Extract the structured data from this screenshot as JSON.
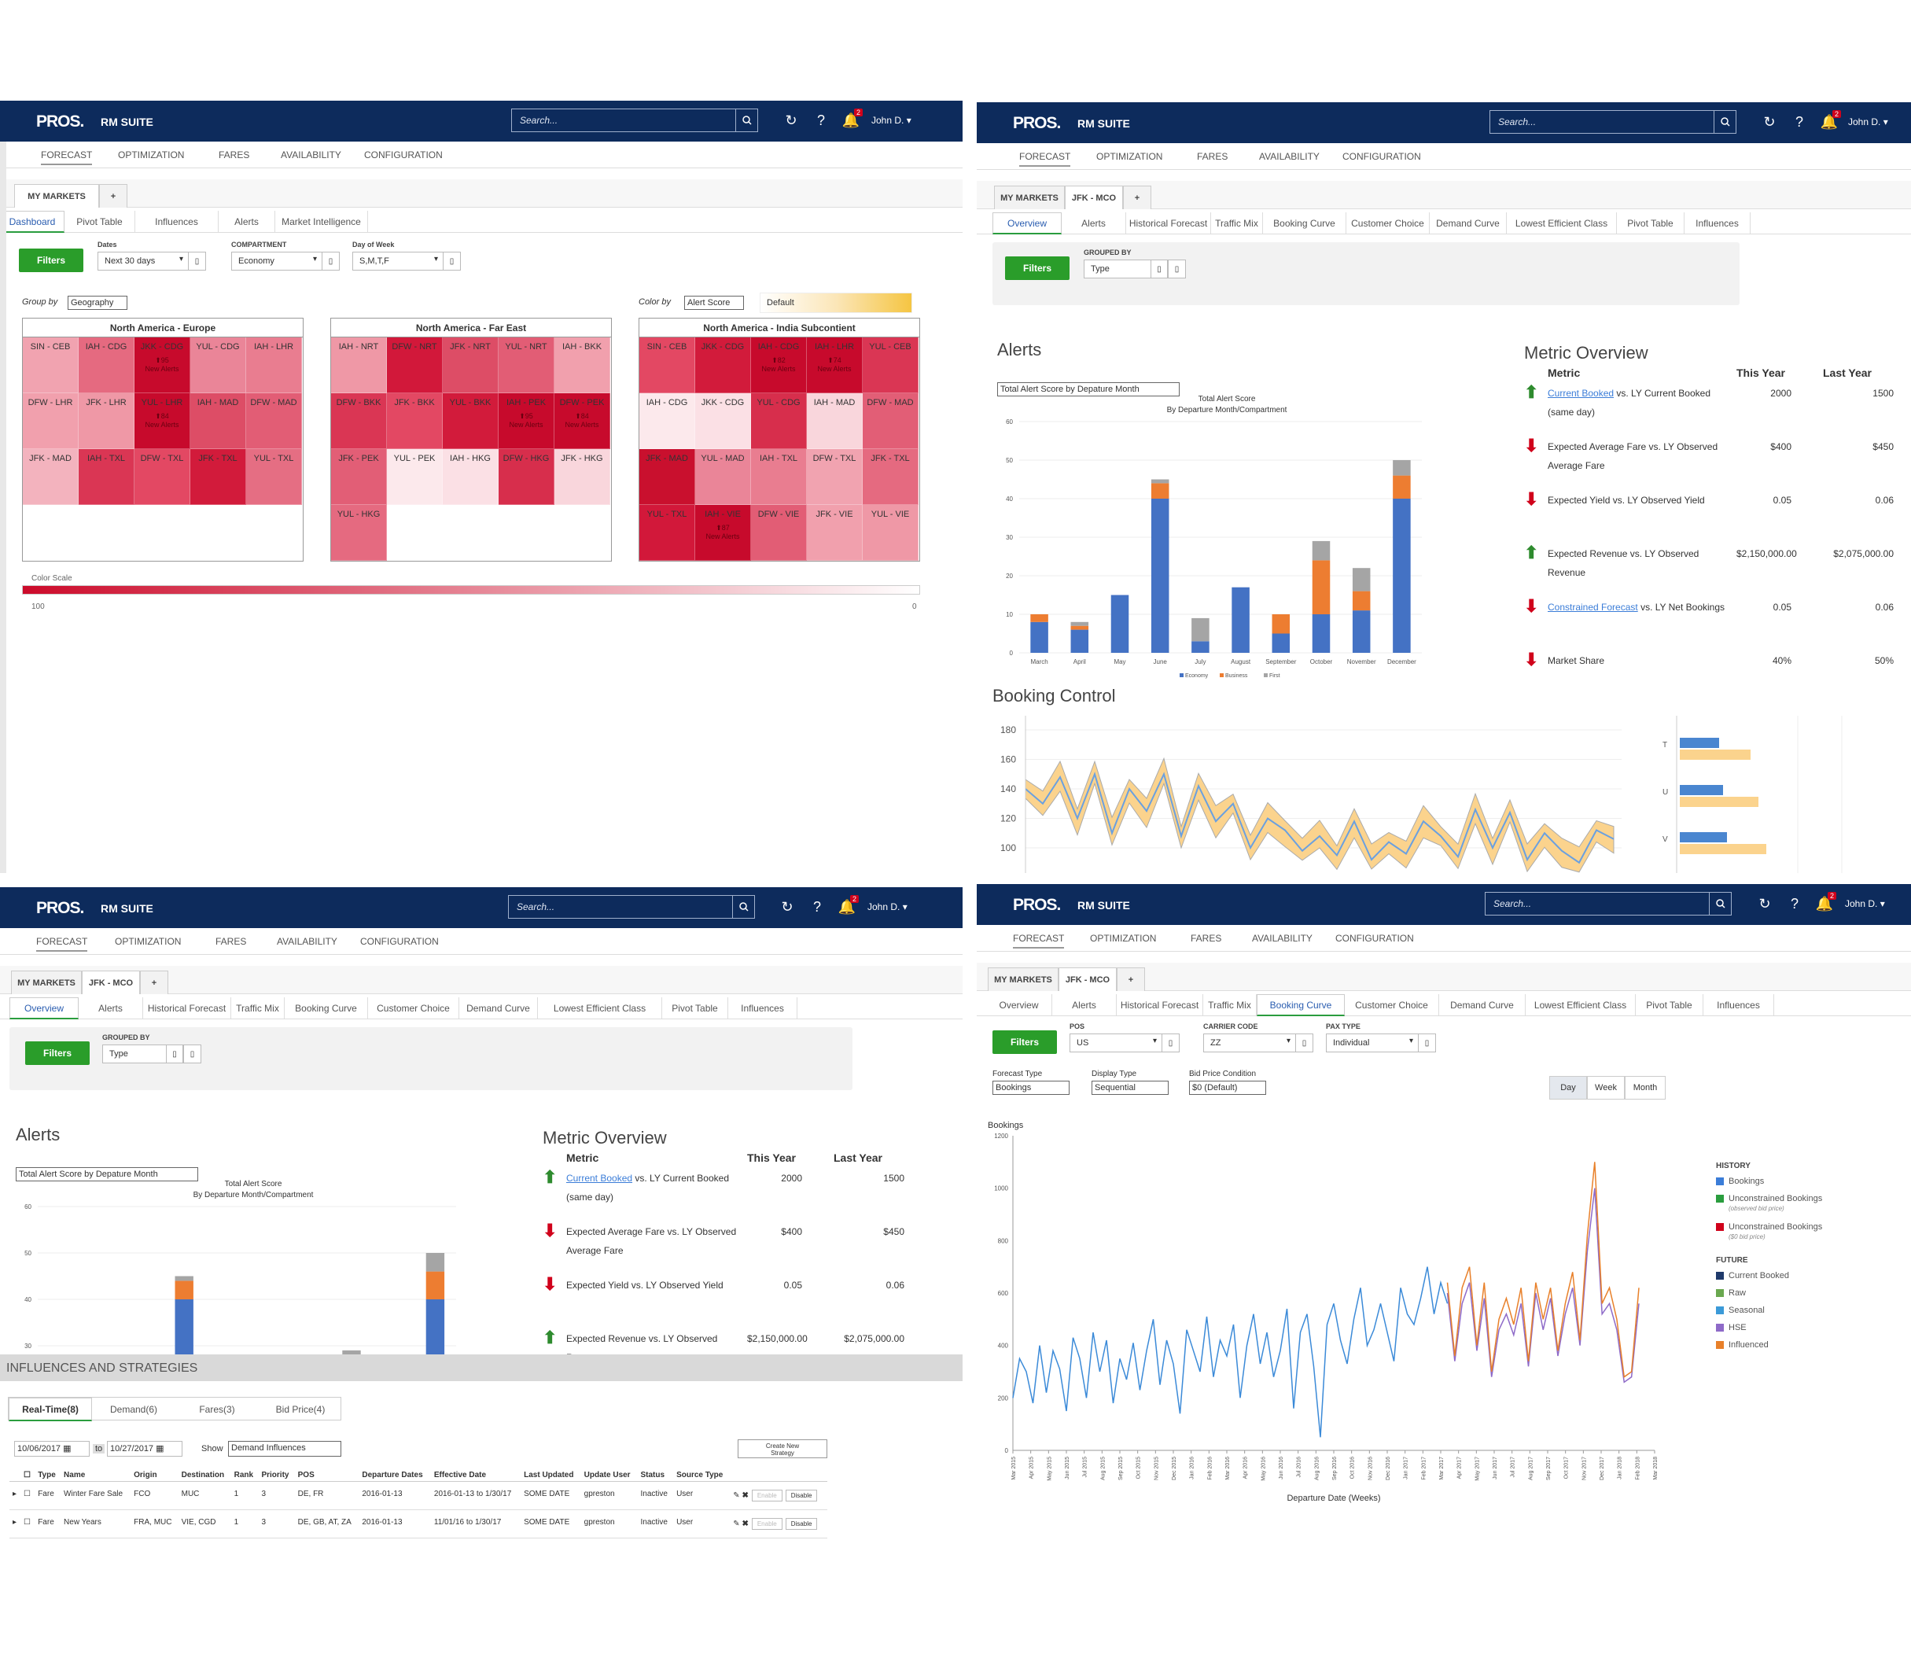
{
  "app": {
    "logo": "PROS.",
    "suite": "RM SUITE",
    "search_placeholder": "Search...",
    "user": "John D.",
    "notif": "2"
  },
  "nav": [
    "FORECAST",
    "OPTIMIZATION",
    "FARES",
    "AVAILABILITY",
    "CONFIGURATION"
  ],
  "dash": {
    "tabs": [
      "MY MARKETS",
      "+"
    ],
    "subtabs": [
      "Dashboard",
      "Pivot Table",
      "Influences",
      "Alerts",
      "Market Intelligence"
    ],
    "filters": "Filters",
    "f_dates_label": "Dates",
    "f_dates": "Next 30 days",
    "f_comp_label": "COMPARTMENT",
    "f_comp": "Economy",
    "f_dow_label": "Day of Week",
    "f_dow": "S,M,T,F",
    "group_by": "Group by",
    "group_sel": "Geography",
    "color_by": "Color by",
    "color_sel": "Alert Score",
    "default": "Default",
    "maps": [
      {
        "title": "North America - Europe",
        "cells": [
          [
            "SIN - CEB",
            "IAH - CDG",
            "JKK - CDG",
            "YUL - CDG",
            "IAH - LHR"
          ],
          [
            "DFW - LHR",
            "JFK - LHR",
            "YUL - LHR",
            "IAH - MAD",
            "DFW - MAD"
          ],
          [
            "JFK - MAD",
            "IAH - TXL",
            "DFW - TXL",
            "JFK - TXL",
            "YUL - TXL"
          ]
        ],
        "alerts": [
          {
            "r": 0,
            "c": 2,
            "n": "95",
            "t": "New Alerts"
          },
          {
            "r": 1,
            "c": 2,
            "n": "84",
            "t": "New Alerts"
          }
        ]
      },
      {
        "title": "North America - Far East",
        "cells": [
          [
            "IAH - NRT",
            "DFW - NRT",
            "JFK - NRT",
            "YUL - NRT",
            "IAH - BKK"
          ],
          [
            "DFW - BKK",
            "JFK - BKK",
            "YUL - BKK",
            "IAH - PEK",
            "DFW - PEK"
          ],
          [
            "JFK - PEK",
            "YUL - PEK",
            "IAH - HKG",
            "DFW - HKG",
            "JFK - HKG"
          ],
          [
            "YUL - HKG"
          ]
        ],
        "alerts": [
          {
            "r": 1,
            "c": 3,
            "n": "95",
            "t": "New Alerts"
          },
          {
            "r": 1,
            "c": 4,
            "n": "84",
            "t": "New Alerts"
          }
        ]
      },
      {
        "title": "North America - India Subcontient",
        "cells": [
          [
            "SIN - CEB",
            "JKK - CDG",
            "IAH - CDG",
            "IAH - LHR",
            "YUL - CEB"
          ],
          [
            "IAH - CDG",
            "JKK - CDG",
            "YUL - CDG",
            "IAH - MAD",
            "DFW - MAD"
          ],
          [
            "JFK - MAD",
            "YUL - MAD",
            "IAH - TXL",
            "DFW - TXL",
            "JFK - TXL"
          ],
          [
            "YUL - TXL",
            "IAH - VIE",
            "DFW - VIE",
            "JFK - VIE",
            "YUL - VIE"
          ]
        ],
        "alerts": [
          {
            "r": 0,
            "c": 2,
            "n": "82",
            "t": "New Alerts"
          },
          {
            "r": 0,
            "c": 3,
            "n": "74",
            "t": "New Alerts"
          },
          {
            "r": 3,
            "c": 1,
            "n": "87",
            "t": "New Alerts"
          }
        ]
      }
    ],
    "color_scale": "Color Scale",
    "scale_max": "100",
    "scale_min": "0"
  },
  "overview": {
    "tabs": [
      "MY MARKETS",
      "JFK - MCO",
      "+"
    ],
    "subtabs": [
      "Overview",
      "Alerts",
      "Historical Forecast",
      "Traffic Mix",
      "Booking Curve",
      "Customer Choice",
      "Demand Curve",
      "Lowest Efficient Class",
      "Pivot Table",
      "Influences"
    ],
    "grouped_by": "GROUPED BY",
    "grouped_sel": "Type",
    "alerts_title": "Alerts",
    "alerts_sel": "Total Alert Score by Depature Month",
    "chart_title1": "Total Alert Score",
    "chart_title2": "By Departure Month/Compartment",
    "metric_title": "Metric Overview",
    "col_metric": "Metric",
    "col_ty": "This Year",
    "col_ly": "Last Year",
    "metrics": [
      {
        "dir": "up",
        "link": "Current Booked",
        "text": " vs. LY Current Booked (same day)",
        "ty": "2000",
        "ly": "1500"
      },
      {
        "dir": "dn",
        "link": "",
        "text": "Expected Average Fare vs. LY Observed Average Fare",
        "ty": "$400",
        "ly": "$450"
      },
      {
        "dir": "dn",
        "link": "",
        "text": "Expected Yield vs. LY Observed Yield",
        "ty": "0.05",
        "ly": "0.06"
      },
      {
        "dir": "up",
        "link": "",
        "text": "Expected Revenue vs. LY Observed Revenue",
        "ty": "$2,150,000.00",
        "ly": "$2,075,000.00"
      },
      {
        "dir": "dn",
        "link": "Constrained Forecast",
        "text": " vs. LY Net Bookings",
        "ty": "0.05",
        "ly": "0.06"
      },
      {
        "dir": "dn",
        "link": "",
        "text": "Market Share",
        "ty": "40%",
        "ly": "50%"
      }
    ],
    "booking_control": "Booking Control",
    "bc_yticks": [
      "180",
      "160",
      "140",
      "120",
      "100"
    ],
    "bc_classes": [
      "T",
      "U",
      "V"
    ]
  },
  "chart_data": [
    {
      "type": "bar",
      "title": "Total Alert Score",
      "subtitle": "By Departure Month/Compartment",
      "categories": [
        "March",
        "April",
        "May",
        "June",
        "July",
        "August",
        "September",
        "October",
        "November",
        "December"
      ],
      "series": [
        {
          "name": "Economy",
          "values": [
            8,
            6,
            15,
            40,
            3,
            17,
            5,
            10,
            11,
            40
          ]
        },
        {
          "name": "Business",
          "values": [
            2,
            1,
            0,
            4,
            0,
            0,
            5,
            14,
            5,
            6
          ]
        },
        {
          "name": "First",
          "values": [
            0,
            1,
            0,
            1,
            6,
            0,
            0,
            5,
            6,
            4
          ]
        }
      ],
      "ylim": [
        0,
        60
      ],
      "yticks": [
        0,
        10,
        20,
        30,
        40,
        50,
        60
      ],
      "legend": "bottom"
    },
    {
      "type": "line",
      "ylabel": "Bookings",
      "xlabel": "Departure Date (Weeks)",
      "ylim": [
        0,
        1200
      ],
      "yticks": [
        0,
        200,
        400,
        600,
        800,
        1000,
        1200
      ],
      "series": [
        {
          "name": "Bookings",
          "values": [
            200,
            350,
            300,
            180,
            400,
            220,
            380,
            310,
            150,
            430,
            350,
            200,
            450,
            300,
            420,
            180,
            350,
            270,
            410,
            230,
            380,
            500,
            250,
            420,
            330,
            140,
            460,
            380,
            300,
            510,
            280,
            420,
            360,
            480,
            200,
            400,
            520,
            330,
            450,
            280,
            380,
            540,
            160,
            450,
            520,
            320,
            50,
            480,
            560,
            420,
            330,
            500,
            620,
            400,
            460,
            560,
            450,
            340,
            620,
            520,
            480,
            580,
            700,
            520,
            640,
            560
          ]
        },
        {
          "name": "Unconstrained Bookings",
          "values": [
            640,
            360,
            620,
            700,
            400,
            640,
            300,
            500,
            580,
            480,
            620,
            340,
            640,
            500,
            620,
            380,
            560,
            680,
            420,
            820,
            1100,
            560,
            620,
            500,
            280,
            300,
            620
          ]
        },
        {
          "name": "HSE",
          "values": [
            600,
            340,
            560,
            640,
            380,
            580,
            280,
            460,
            520,
            440,
            560,
            320,
            600,
            460,
            580,
            360,
            520,
            620,
            400,
            760,
            1000,
            520,
            560,
            460,
            260,
            280,
            560
          ]
        }
      ]
    }
  ],
  "infl": {
    "band": "INFLUENCES AND STRATEGIES",
    "tabs": [
      "Real-Time(8)",
      "Demand(6)",
      "Fares(3)",
      "Bid Price(4)"
    ],
    "date_from": "10/06/2017",
    "to": "to",
    "date_to": "10/27/2017",
    "show": "Show",
    "show_sel": "Demand Influences",
    "create": "Create New Strategy",
    "cols": [
      "Type",
      "Name",
      "Origin",
      "Destination",
      "Rank",
      "Priority",
      "POS",
      "Departure Dates",
      "Effective Date",
      "Last Updated",
      "Update User",
      "Status",
      "Source Type"
    ],
    "rows": [
      [
        "Fare",
        "Winter Fare Sale",
        "FCO",
        "MUC",
        "1",
        "3",
        "DE, FR",
        "2016-01-13",
        "2016-01-13 to 1/30/17",
        "SOME DATE",
        "gpreston",
        "Inactive",
        "User"
      ],
      [
        "Fare",
        "New Years",
        "FRA, MUC",
        "VIE, CGD",
        "1",
        "3",
        "DE, GB, AT, ZA",
        "2016-01-13",
        "11/01/16 to 1/30/17",
        "SOME DATE",
        "gpreston",
        "Inactive",
        "User"
      ]
    ],
    "enable": "Enable",
    "disable": "Disable"
  },
  "curve": {
    "pos_label": "POS",
    "pos": "US",
    "carrier_label": "CARRIER CODE",
    "carrier": "ZZ",
    "pax_label": "PAX TYPE",
    "pax": "Individual",
    "ftype_label": "Forecast Type",
    "ftype": "Bookings",
    "dtype_label": "Display Type",
    "dtype": "Sequential",
    "bid_label": "Bid Price Condition",
    "bid": "$0 (Default)",
    "seg": [
      "Day",
      "Week",
      "Month"
    ],
    "xticks": [
      "Mar 2015",
      "Apr 2015",
      "May 2015",
      "Jun 2015",
      "Jul 2015",
      "Aug 2015",
      "Sep 2015",
      "Oct 2015",
      "Nov 2015",
      "Dec 2015",
      "Jan 2016",
      "Feb 2016",
      "Mar 2016",
      "Apr 2016",
      "May 2016",
      "Jun 2016",
      "Jul 2016",
      "Aug 2016",
      "Sep 2016",
      "Oct 2016",
      "Nov 2016",
      "Dec 2016",
      "Jan 2017",
      "Feb 2017",
      "Mar 2017",
      "Apr 2017",
      "May 2017",
      "Jun 2017",
      "Jul 2017",
      "Aug 2017",
      "Sep 2017",
      "Oct 2017",
      "Nov 2017",
      "Dec 2017",
      "Jan 2018",
      "Feb 2018",
      "Mar 2018"
    ],
    "legend": {
      "history": "HISTORY",
      "future": "FUTURE",
      "items_h": [
        {
          "t": "Bookings",
          "c": "#3b7dd8"
        },
        {
          "t": "Unconstrained Bookings",
          "s": "(observed bid price)",
          "c": "#2a9d3e"
        },
        {
          "t": "Unconstrained Bookings",
          "s": "($0 bid price)",
          "c": "#d0021b"
        }
      ],
      "items_f": [
        {
          "t": "Current Booked",
          "c": "#1f3a6b"
        },
        {
          "t": "Raw",
          "c": "#6aa84f"
        },
        {
          "t": "Seasonal",
          "c": "#3b9ad8"
        },
        {
          "t": "HSE",
          "c": "#8e6ac8"
        },
        {
          "t": "Influenced",
          "c": "#e8802a"
        }
      ]
    }
  }
}
